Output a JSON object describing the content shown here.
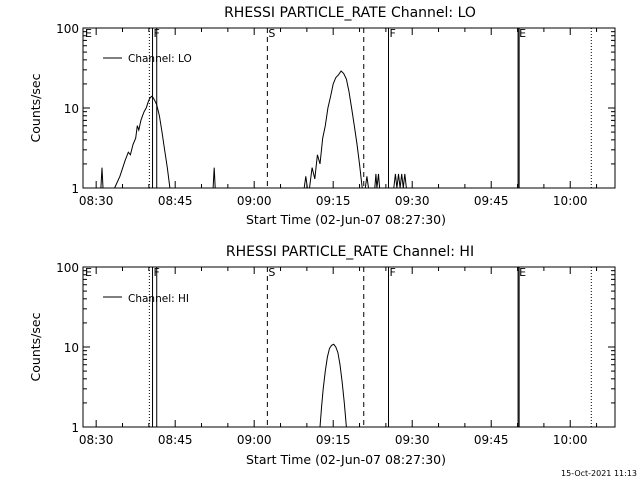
{
  "footer": {
    "timestamp": "15-Oct-2021 11:13"
  },
  "chart_data": [
    {
      "type": "line",
      "title": "RHESSI PARTICLE_RATE Channel: LO",
      "xlabel": "Start Time (02-Jun-07 08:27:30)",
      "ylabel": "Counts/sec",
      "y_scale": "log",
      "ylim": [
        1,
        100
      ],
      "xlim_minutes": [
        0,
        101
      ],
      "x_ticks": [
        {
          "label": "08:30",
          "min": 2.5
        },
        {
          "label": "08:45",
          "min": 17.5
        },
        {
          "label": "09:00",
          "min": 32.5
        },
        {
          "label": "09:15",
          "min": 47.5
        },
        {
          "label": "09:30",
          "min": 62.5
        },
        {
          "label": "09:45",
          "min": 77.5
        },
        {
          "label": "10:00",
          "min": 92.5
        }
      ],
      "y_ticks": [
        {
          "label": "1",
          "value": 1
        },
        {
          "label": "10",
          "value": 10
        },
        {
          "label": "100",
          "value": 100
        }
      ],
      "legend": {
        "label": "Channel: LO",
        "position": "top-left"
      },
      "markers": [
        {
          "label": "E",
          "min": 0.2,
          "style": "none"
        },
        {
          "label": "",
          "min": 12.6,
          "style": "dotted"
        },
        {
          "label": "F",
          "min": 13.2,
          "style": "solid"
        },
        {
          "label": "",
          "min": 14.0,
          "style": "solid"
        },
        {
          "label": "S",
          "min": 35.0,
          "style": "dashed"
        },
        {
          "label": "",
          "min": 53.3,
          "style": "dashed"
        },
        {
          "label": "F",
          "min": 58.0,
          "style": "solid"
        },
        {
          "label": "E",
          "min": 82.6,
          "style": "solid"
        },
        {
          "label": "",
          "min": 82.8,
          "style": "solid"
        },
        {
          "label": "",
          "min": 96.5,
          "style": "dotted"
        }
      ],
      "series": [
        {
          "segments": [
            [
              [
                3.4,
                1
              ],
              [
                3.6,
                1.8
              ],
              [
                3.8,
                1
              ]
            ],
            [
              [
                6.0,
                1
              ],
              [
                7.0,
                1.4
              ],
              [
                8.0,
                2.2
              ],
              [
                8.6,
                2.8
              ],
              [
                9.0,
                2.6
              ],
              [
                9.5,
                3.5
              ],
              [
                10.0,
                4.2
              ],
              [
                10.3,
                6.0
              ],
              [
                10.6,
                5.3
              ],
              [
                11.0,
                7.0
              ],
              [
                11.3,
                8.0
              ],
              [
                11.6,
                9.0
              ],
              [
                12.0,
                10.0
              ],
              [
                12.3,
                11.5
              ],
              [
                12.6,
                13.0
              ],
              [
                13.0,
                14.0
              ],
              [
                13.3,
                13.5
              ],
              [
                13.6,
                12.5
              ],
              [
                14.0,
                11.0
              ],
              [
                14.5,
                8.0
              ],
              [
                15.0,
                5.0
              ],
              [
                15.5,
                3.0
              ],
              [
                16.0,
                1.8
              ],
              [
                16.5,
                1.0
              ]
            ],
            [
              [
                24.7,
                1
              ],
              [
                24.9,
                1.8
              ],
              [
                25.1,
                1
              ]
            ],
            [
              [
                42.0,
                1
              ],
              [
                42.3,
                1.4
              ],
              [
                42.6,
                1
              ]
            ],
            [
              [
                43.0,
                1
              ],
              [
                43.5,
                1.8
              ],
              [
                44.0,
                1.3
              ],
              [
                44.5,
                2.6
              ],
              [
                45.0,
                2.0
              ],
              [
                45.5,
                4.2
              ],
              [
                46.0,
                6.0
              ],
              [
                46.5,
                10.0
              ],
              [
                47.0,
                14.0
              ],
              [
                47.5,
                20.0
              ],
              [
                48.0,
                24.0
              ],
              [
                48.5,
                26.0
              ],
              [
                49.0,
                29.0
              ],
              [
                49.5,
                27.0
              ],
              [
                50.0,
                23.0
              ],
              [
                50.5,
                16.0
              ],
              [
                51.0,
                10.0
              ],
              [
                51.5,
                6.0
              ],
              [
                52.0,
                3.6
              ],
              [
                52.5,
                2.0
              ],
              [
                53.0,
                1.0
              ]
            ],
            [
              [
                53.6,
                1
              ],
              [
                53.9,
                1.4
              ],
              [
                54.2,
                1
              ]
            ],
            [
              [
                55.4,
                1
              ],
              [
                55.6,
                1.5
              ],
              [
                55.8,
                1
              ],
              [
                56.1,
                1.5
              ],
              [
                56.3,
                1
              ]
            ],
            [
              [
                59.0,
                1
              ],
              [
                59.3,
                1.5
              ],
              [
                59.6,
                1
              ],
              [
                59.9,
                1.5
              ],
              [
                60.2,
                1
              ],
              [
                60.5,
                1.5
              ],
              [
                60.8,
                1
              ],
              [
                61.1,
                1.5
              ],
              [
                61.4,
                1
              ]
            ]
          ]
        }
      ]
    },
    {
      "type": "line",
      "title": "RHESSI PARTICLE_RATE Channel: HI",
      "xlabel": "Start Time (02-Jun-07 08:27:30)",
      "ylabel": "Counts/sec",
      "y_scale": "log",
      "ylim": [
        1,
        100
      ],
      "xlim_minutes": [
        0,
        101
      ],
      "x_ticks": [
        {
          "label": "08:30",
          "min": 2.5
        },
        {
          "label": "08:45",
          "min": 17.5
        },
        {
          "label": "09:00",
          "min": 32.5
        },
        {
          "label": "09:15",
          "min": 47.5
        },
        {
          "label": "09:30",
          "min": 62.5
        },
        {
          "label": "09:45",
          "min": 77.5
        },
        {
          "label": "10:00",
          "min": 92.5
        }
      ],
      "y_ticks": [
        {
          "label": "1",
          "value": 1
        },
        {
          "label": "10",
          "value": 10
        },
        {
          "label": "100",
          "value": 100
        }
      ],
      "legend": {
        "label": "Channel: HI",
        "position": "top-left"
      },
      "markers": [
        {
          "label": "E",
          "min": 0.2,
          "style": "none"
        },
        {
          "label": "",
          "min": 12.6,
          "style": "dotted"
        },
        {
          "label": "F",
          "min": 13.2,
          "style": "solid"
        },
        {
          "label": "",
          "min": 14.0,
          "style": "solid"
        },
        {
          "label": "S",
          "min": 35.0,
          "style": "dashed"
        },
        {
          "label": "",
          "min": 53.3,
          "style": "dashed"
        },
        {
          "label": "F",
          "min": 58.0,
          "style": "solid"
        },
        {
          "label": "E",
          "min": 82.6,
          "style": "solid"
        },
        {
          "label": "",
          "min": 82.8,
          "style": "solid"
        },
        {
          "label": "",
          "min": 96.5,
          "style": "dotted"
        }
      ],
      "series": [
        {
          "segments": [
            [
              [
                45.0,
                1.0
              ],
              [
                45.3,
                1.8
              ],
              [
                45.6,
                3.0
              ],
              [
                46.0,
                5.0
              ],
              [
                46.4,
                7.5
              ],
              [
                46.8,
                9.6
              ],
              [
                47.2,
                10.5
              ],
              [
                47.6,
                10.8
              ],
              [
                48.0,
                10.0
              ],
              [
                48.4,
                8.5
              ],
              [
                48.8,
                6.0
              ],
              [
                49.2,
                3.6
              ],
              [
                49.6,
                2.0
              ],
              [
                50.0,
                1.0
              ]
            ]
          ]
        }
      ]
    }
  ]
}
